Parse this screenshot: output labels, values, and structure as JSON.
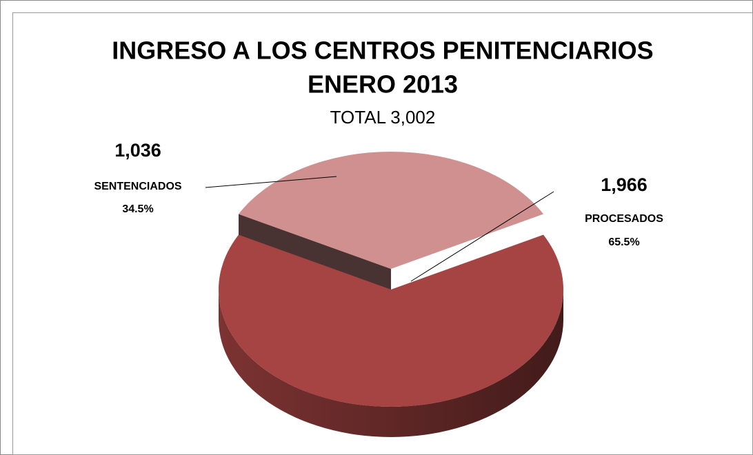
{
  "chart_data": {
    "type": "pie",
    "title": [
      "INGRESO A LOS CENTROS PENITENCIARIOS",
      "ENERO 2013"
    ],
    "subtitle": "TOTAL  3,002",
    "categories": [
      "SENTENCIADOS",
      "PROCESADOS"
    ],
    "values": [
      1036,
      1966
    ],
    "value_labels": [
      "1,036",
      "1,966"
    ],
    "percent_labels": [
      "34.5%",
      "65.5%"
    ],
    "colors": [
      "#d09090",
      "#a54442"
    ]
  }
}
